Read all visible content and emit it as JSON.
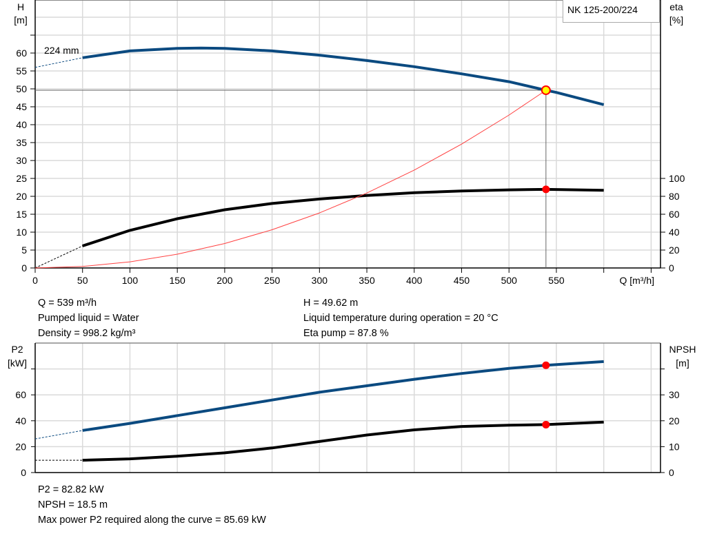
{
  "chart_data": [
    {
      "type": "line",
      "title": "",
      "model_label": "NK 125-200/224",
      "xlabel": "Q [m³/h]",
      "ylabel_left": [
        "H",
        "[m]"
      ],
      "ylabel_right": [
        "eta",
        "[%]"
      ],
      "xlim": [
        0,
        650
      ],
      "ylim_left": [
        0,
        75
      ],
      "ylim_right": [
        0,
        100
      ],
      "x_ticks": [
        0,
        50,
        100,
        150,
        200,
        250,
        300,
        350,
        400,
        450,
        500,
        550
      ],
      "y_ticks_left": [
        0,
        5,
        10,
        15,
        20,
        25,
        30,
        35,
        40,
        45,
        50,
        55,
        60
      ],
      "y_ticks_right": [
        0,
        20,
        40,
        60,
        80,
        100
      ],
      "grid": true,
      "impeller_label": "224 mm",
      "series": [
        {
          "key": "head",
          "axis": "left",
          "color": "#0b4a80",
          "x": [
            50,
            100,
            150,
            175,
            200,
            250,
            300,
            350,
            400,
            450,
            500,
            539,
            550,
            600
          ],
          "y": [
            58.7,
            60.6,
            61.3,
            61.4,
            61.3,
            60.6,
            59.4,
            57.9,
            56.2,
            54.2,
            52.0,
            49.62,
            49.0,
            45.6
          ],
          "extrapolated": {
            "x": [
              0,
              50
            ],
            "y": [
              56.0,
              58.7
            ]
          }
        },
        {
          "key": "eta",
          "axis": "right",
          "color": "#000000",
          "x": [
            50,
            100,
            150,
            200,
            250,
            300,
            350,
            400,
            450,
            500,
            539,
            600
          ],
          "y": [
            24.6,
            42,
            55,
            65,
            72,
            77,
            81,
            84,
            86,
            87.2,
            87.8,
            86.8
          ],
          "extrapolated": {
            "x": [
              0,
              50
            ],
            "y": [
              0,
              24.6
            ]
          }
        },
        {
          "key": "system",
          "axis": "left",
          "color": "#ff4040",
          "x": [
            0,
            50,
            100,
            150,
            200,
            250,
            300,
            350,
            400,
            450,
            500,
            539
          ],
          "y": [
            0,
            0.43,
            1.71,
            3.84,
            6.83,
            10.68,
            15.37,
            20.92,
            27.32,
            34.58,
            42.69,
            49.62
          ]
        }
      ],
      "duty_point": {
        "x": 539,
        "h": 49.62,
        "eta": 87.8
      }
    },
    {
      "type": "line",
      "title": "",
      "ylabel_left": [
        "P2",
        "[kW]"
      ],
      "ylabel_right": [
        "NPSH",
        "[m]"
      ],
      "xlim": [
        0,
        650
      ],
      "ylim_left": [
        0,
        100
      ],
      "ylim_right": [
        0,
        50
      ],
      "x_ticks": [
        0,
        50,
        100,
        150,
        200,
        250,
        300,
        350,
        400,
        450,
        500,
        550,
        600,
        650
      ],
      "y_ticks_left": [
        0,
        20,
        40,
        60,
        80
      ],
      "y_tick_labels_left": [
        "0",
        "20",
        "40",
        "60",
        ""
      ],
      "y_ticks_right": [
        0,
        10,
        20,
        30,
        40
      ],
      "y_tick_labels_right": [
        "0",
        "10",
        "20",
        "30",
        ""
      ],
      "grid": true,
      "series": [
        {
          "key": "p2",
          "axis": "left",
          "color": "#0b4a80",
          "x": [
            50,
            100,
            150,
            200,
            250,
            300,
            350,
            400,
            450,
            500,
            539,
            600
          ],
          "y": [
            32.5,
            38,
            44,
            50,
            56,
            62,
            67,
            72,
            76.5,
            80.5,
            82.82,
            85.69
          ],
          "extrapolated": {
            "x": [
              0,
              50
            ],
            "y": [
              26,
              32.5
            ]
          }
        },
        {
          "key": "npsh",
          "axis": "right",
          "color": "#000000",
          "x": [
            50,
            100,
            150,
            200,
            250,
            300,
            350,
            400,
            450,
            500,
            539,
            600
          ],
          "y": [
            4.75,
            5.3,
            6.3,
            7.6,
            9.5,
            12,
            14.5,
            16.5,
            17.8,
            18.3,
            18.5,
            19.5
          ],
          "extrapolated": {
            "x": [
              0,
              50
            ],
            "y": [
              4.75,
              4.75
            ]
          }
        }
      ],
      "duty_point": {
        "x": 539,
        "p2": 82.82,
        "npsh": 18.5
      }
    }
  ],
  "info_top": {
    "q": "Q = 539 m³/h",
    "liquid": "Pumped liquid = Water",
    "density": "Density = 998.2 kg/m³",
    "h": "H = 49.62 m",
    "temp": "Liquid temperature during operation = 20 °C",
    "eta": "Eta pump = 87.8 %"
  },
  "info_bottom": {
    "p2": "P2 = 82.82 kW",
    "npsh": "NPSH = 18.5 m",
    "max_power": "Max power P2 required along the curve = 85.69 kW"
  }
}
